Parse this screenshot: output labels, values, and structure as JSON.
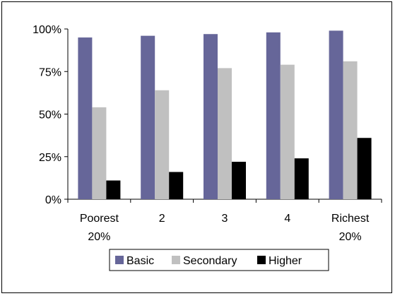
{
  "chart_data": {
    "type": "bar",
    "categories": [
      [
        "Poorest",
        "20%"
      ],
      [
        "2"
      ],
      [
        "3"
      ],
      [
        "4"
      ],
      [
        "Richest",
        "20%"
      ]
    ],
    "series": [
      {
        "name": "Basic",
        "color": "#666699",
        "values": [
          95,
          96,
          97,
          98,
          99
        ]
      },
      {
        "name": "Secondary",
        "color": "#c0c0c0",
        "values": [
          54,
          64,
          77,
          79,
          81
        ]
      },
      {
        "name": "Higher",
        "color": "#000000",
        "values": [
          11,
          16,
          22,
          24,
          36
        ]
      }
    ],
    "yticks": [
      "0%",
      "25%",
      "50%",
      "75%",
      "100%"
    ],
    "ylim": [
      0,
      100
    ],
    "title": "",
    "xlabel": "",
    "ylabel": "",
    "grid": false,
    "legend_position": "bottom"
  }
}
